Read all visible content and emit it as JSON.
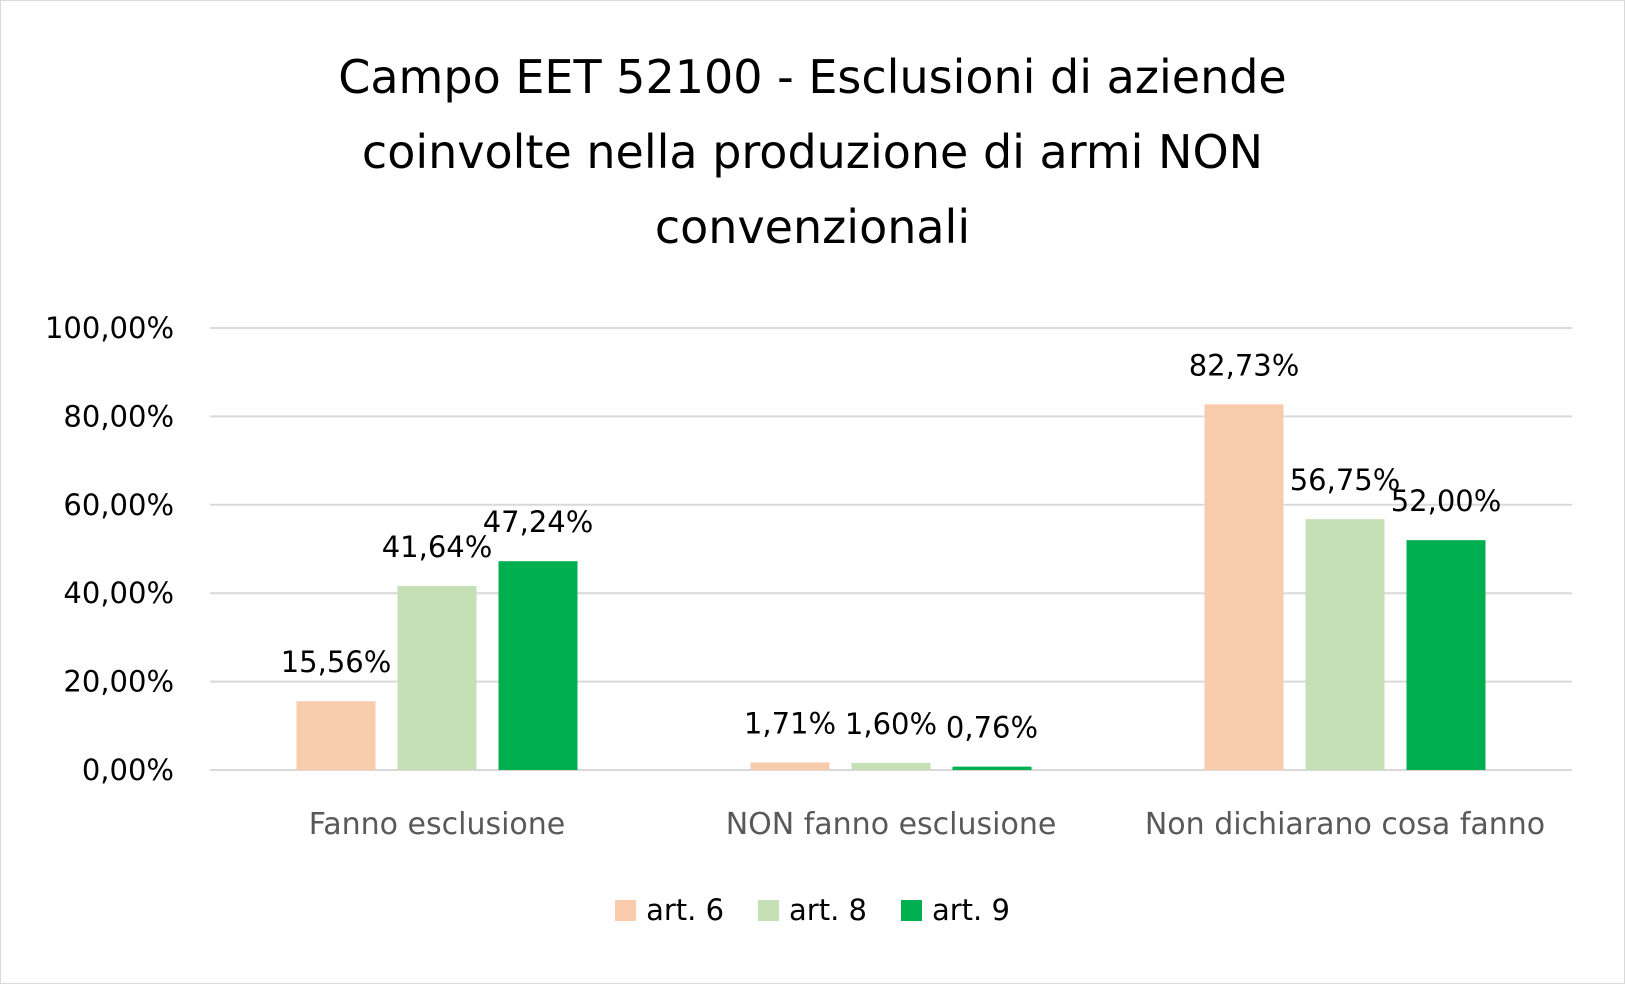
{
  "chart_data": {
    "type": "bar",
    "title_lines": [
      "Campo EET 52100 - Esclusioni di aziende",
      "coinvolte nella produzione di armi NON",
      "convenzionali"
    ],
    "categories": [
      "Fanno esclusione",
      "NON fanno esclusione",
      "Non dichiarano cosa fanno"
    ],
    "series": [
      {
        "name": "art. 6",
        "color": "#F8CBAD",
        "values": [
          15.56,
          1.71,
          82.73
        ],
        "labels": [
          "15,56%",
          "1,71%",
          "82,73%"
        ]
      },
      {
        "name": "art. 8",
        "color": "#C5E0B4",
        "values": [
          41.64,
          1.6,
          56.75
        ],
        "labels": [
          "41,64%",
          "1,60%",
          "56,75%"
        ]
      },
      {
        "name": "art. 9",
        "color": "#00B050",
        "values": [
          47.24,
          0.76,
          52.0
        ],
        "labels": [
          "47,24%",
          "0,76%",
          "52,00%"
        ]
      }
    ],
    "yticks": [
      "0,00%",
      "20,00%",
      "40,00%",
      "60,00%",
      "80,00%",
      "100,00%"
    ],
    "ylim": [
      0,
      100
    ],
    "grid": true,
    "legend_position": "bottom"
  }
}
